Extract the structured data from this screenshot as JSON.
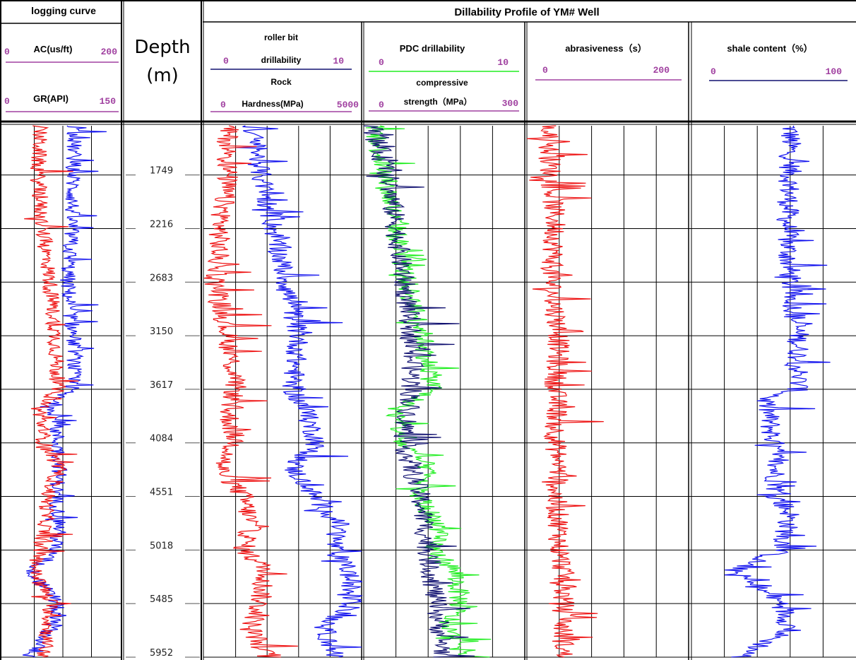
{
  "title": "Dillability Profile of YM# Well",
  "left_header": "logging curve",
  "depth_header": {
    "line1": "Depth",
    "line2": "(m)"
  },
  "colors": {
    "red": "#ee1111",
    "blue": "#1111ee",
    "green": "#22ee22",
    "navy": "#101070",
    "purple": "#a040a0",
    "grid": "#000000"
  },
  "tracks": {
    "logging": {
      "curves": [
        {
          "name": "AC(us/ft)",
          "min": "0",
          "max": "200",
          "color": "blue"
        },
        {
          "name": "GR(API)",
          "min": "0",
          "max": "150",
          "color": "red"
        }
      ]
    },
    "roller": {
      "line1": "roller bit",
      "line2": "drillability",
      "min": "0",
      "max": "10",
      "line3": "Rock",
      "line4": "Hardness(MPa)",
      "min2": "0",
      "max2": "5000"
    },
    "pdc": {
      "line1": "PDC drillability",
      "min": "0",
      "max": "10",
      "line2": "compressive",
      "line3": "strength（MPa）",
      "min2": "0",
      "max2": "300"
    },
    "abr": {
      "label": "abrasiveness（s）",
      "min": "0",
      "max": "200"
    },
    "shale": {
      "label": "shale content（%）",
      "min": "0",
      "max": "100"
    }
  },
  "chart_data": {
    "type": "line",
    "title": "Dillability Profile of YM# Well",
    "depth_axis_label": "Depth (m)",
    "depth_ticks": [
      1749,
      2216,
      2683,
      3150,
      3617,
      4084,
      4551,
      5018,
      5485,
      5952
    ],
    "depth_range": [
      1320,
      5952
    ],
    "series": [
      {
        "name": "AC(us/ft)",
        "track": "logging",
        "color": "blue",
        "min": 0,
        "max": 200,
        "depth": [
          1320,
          1749,
          2216,
          2683,
          3150,
          3300,
          3617,
          3700,
          4084,
          4300,
          4551,
          4800,
          5018,
          5200,
          5485,
          5700,
          5952
        ],
        "values": [
          120,
          118,
          115,
          108,
          118,
          122,
          115,
          85,
          90,
          95,
          88,
          95,
          85,
          45,
          90,
          80,
          40
        ]
      },
      {
        "name": "GR(API)",
        "track": "logging",
        "color": "red",
        "min": 0,
        "max": 150,
        "depth": [
          1320,
          1749,
          2216,
          2683,
          3150,
          3617,
          3800,
          4084,
          4300,
          4551,
          4800,
          5018,
          5200,
          5485,
          5700,
          5952
        ],
        "values": [
          45,
          42,
          48,
          58,
          65,
          68,
          45,
          50,
          70,
          55,
          52,
          45,
          38,
          60,
          55,
          50
        ]
      },
      {
        "name": "roller bit drillability",
        "track": "roller",
        "color": "red",
        "min": 0,
        "max": 10,
        "depth": [
          1320,
          1749,
          2216,
          2683,
          3150,
          3617,
          3800,
          4084,
          4300,
          4551,
          4800,
          5018,
          5200,
          5485,
          5700,
          5952
        ],
        "values": [
          1.5,
          1.5,
          1.0,
          0.8,
          1.5,
          2.0,
          1.5,
          2.0,
          1.0,
          2.5,
          3.0,
          2.5,
          4.0,
          3.5,
          3.0,
          4.0
        ]
      },
      {
        "name": "Rock Hardness(MPa)",
        "track": "roller",
        "color": "blue",
        "min": 0,
        "max": 5000,
        "depth": [
          1320,
          1749,
          2216,
          2683,
          3150,
          3617,
          3800,
          4084,
          4300,
          4551,
          4800,
          5018,
          5200,
          5485,
          5700,
          5952
        ],
        "values": [
          1500,
          1800,
          2200,
          2600,
          3000,
          2800,
          3200,
          3600,
          2800,
          3500,
          4300,
          4100,
          4600,
          4700,
          3800,
          4200
        ]
      },
      {
        "name": "PDC drillability",
        "track": "pdc",
        "color": "navy",
        "min": 0,
        "max": 10,
        "depth": [
          1320,
          1749,
          2216,
          2683,
          3150,
          3617,
          4084,
          4551,
          5018,
          5485,
          5952
        ],
        "values": [
          0.5,
          1.5,
          2.0,
          2.5,
          3.0,
          3.0,
          2.5,
          3.5,
          4.0,
          4.5,
          5.0
        ]
      },
      {
        "name": "compressive strength (MPa)",
        "track": "pdc",
        "color": "green",
        "min": 0,
        "max": 300,
        "depth": [
          1320,
          1749,
          2216,
          2683,
          3150,
          3617,
          3800,
          4084,
          4300,
          4551,
          4800,
          5018,
          5200,
          5485,
          5700,
          5952
        ],
        "values": [
          20,
          40,
          60,
          80,
          110,
          130,
          60,
          70,
          120,
          100,
          140,
          130,
          170,
          180,
          150,
          200
        ]
      },
      {
        "name": "abrasiveness (s)",
        "track": "abr",
        "color": "red",
        "min": 0,
        "max": 200,
        "depth": [
          1320,
          1749,
          2216,
          2683,
          3150,
          3617,
          3800,
          4084,
          4300,
          4551,
          4800,
          5018,
          5200,
          5485,
          5700,
          5952
        ],
        "values": [
          25,
          30,
          35,
          30,
          40,
          35,
          38,
          35,
          40,
          35,
          40,
          40,
          45,
          45,
          45,
          45
        ]
      },
      {
        "name": "shale content (%)",
        "track": "shale",
        "color": "blue",
        "min": 0,
        "max": 100,
        "depth": [
          1320,
          1749,
          2216,
          2683,
          3150,
          3617,
          3700,
          4084,
          4551,
          4700,
          5018,
          5200,
          5485,
          5700,
          5952
        ],
        "values": [
          60,
          60,
          58,
          60,
          65,
          65,
          45,
          50,
          52,
          60,
          55,
          25,
          55,
          60,
          30
        ]
      }
    ]
  }
}
